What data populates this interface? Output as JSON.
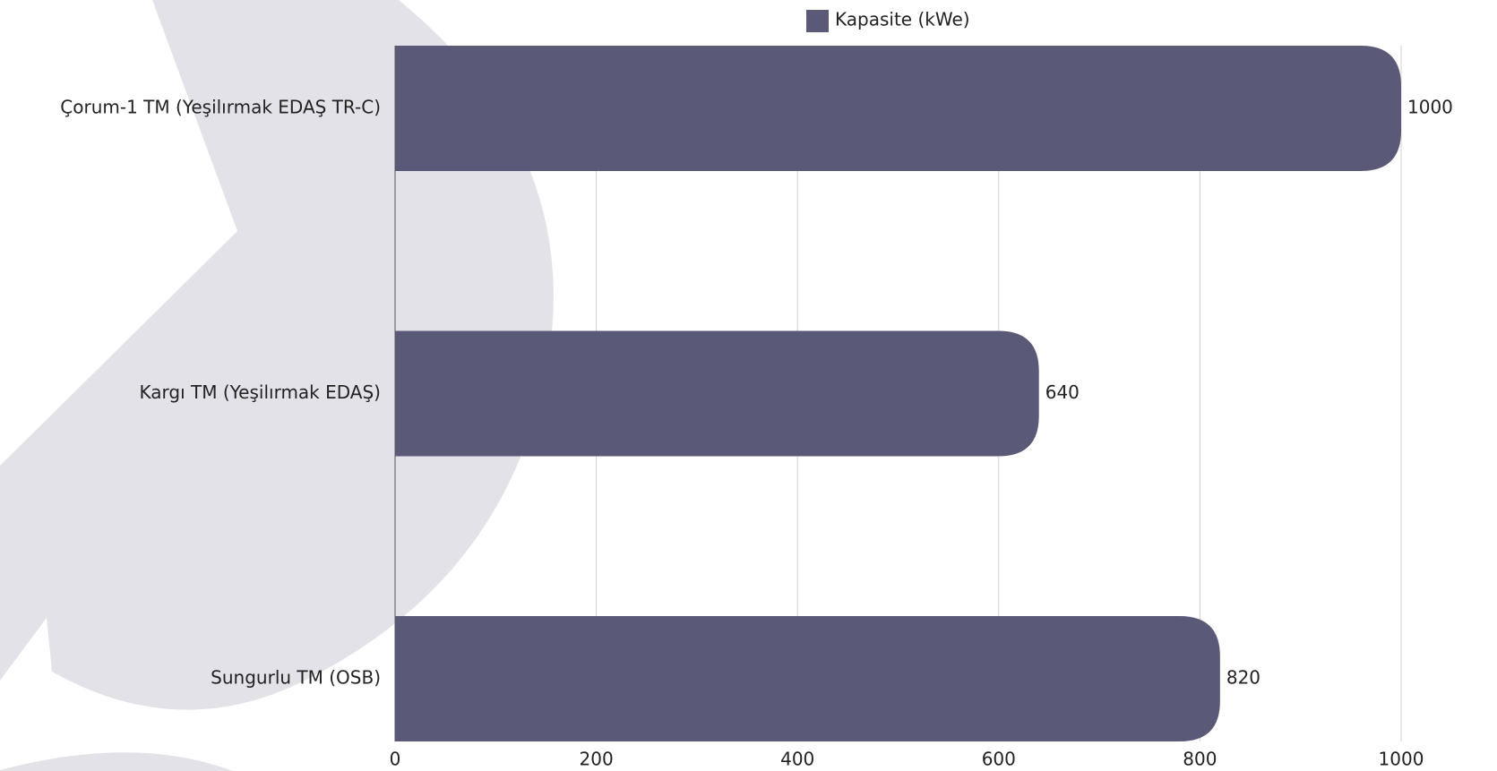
{
  "chart_data": {
    "type": "bar",
    "orientation": "horizontal",
    "categories": [
      "Çorum-1 TM (Yeşilırmak EDAŞ TR-C)",
      "Kargı TM (Yeşilırmak EDAŞ)",
      "Sungurlu TM (OSB)"
    ],
    "series": [
      {
        "name": "Kapasite (kWe)",
        "color": "#5a5a78",
        "values": [
          1000,
          640,
          820
        ]
      }
    ],
    "xlim": [
      0,
      1000
    ],
    "xticks": [
      0,
      200,
      400,
      600,
      800,
      1000
    ],
    "grid": true
  }
}
